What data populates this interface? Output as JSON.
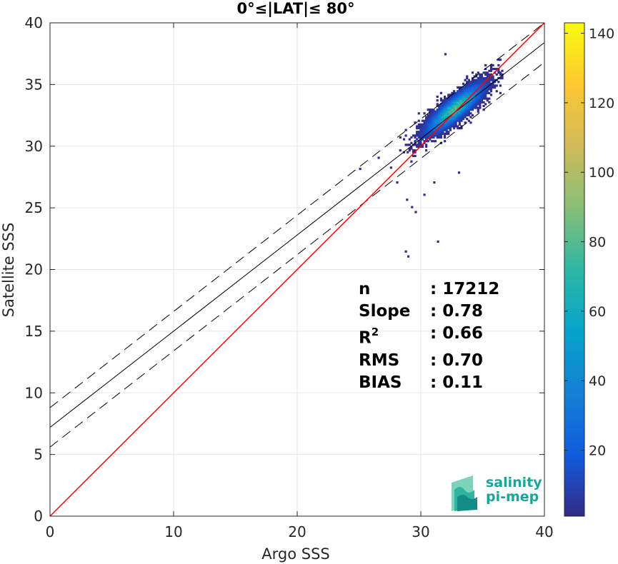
{
  "chart_data": {
    "type": "heatmap",
    "title": "0°≤|LAT|≤ 80°",
    "xlabel": "Argo SSS",
    "ylabel": "Satellite SSS",
    "xlim": [
      0,
      40
    ],
    "ylim": [
      0,
      40
    ],
    "xticks": [
      "0",
      "10",
      "20",
      "30",
      "40"
    ],
    "yticks": [
      "0",
      "5",
      "10",
      "15",
      "20",
      "25",
      "30",
      "35",
      "40"
    ],
    "grid": true,
    "colorbar": {
      "min": 1,
      "max": 143,
      "ticks": [
        "20",
        "40",
        "60",
        "80",
        "100",
        "120",
        "140"
      ],
      "colormap": "parula"
    },
    "density": {
      "center_x": 32.7,
      "center_y": 33.0,
      "spread_major": 2.0,
      "spread_minor": 0.55,
      "orientation_deg": 40,
      "peak_count": 143
    },
    "outliers": [
      {
        "x": 31.9,
        "y": 37.4
      },
      {
        "x": 28.7,
        "y": 21.4
      },
      {
        "x": 28.9,
        "y": 21.0
      },
      {
        "x": 31.3,
        "y": 22.2
      },
      {
        "x": 25.0,
        "y": 28.1
      },
      {
        "x": 29.2,
        "y": 25.0
      },
      {
        "x": 28.8,
        "y": 25.6
      },
      {
        "x": 29.5,
        "y": 24.6
      },
      {
        "x": 26.5,
        "y": 29.0
      },
      {
        "x": 33.0,
        "y": 27.8
      },
      {
        "x": 28.0,
        "y": 27.0
      },
      {
        "x": 30.2,
        "y": 26.0
      },
      {
        "x": 27.5,
        "y": 28.2
      },
      {
        "x": 31.0,
        "y": 27.0
      }
    ],
    "lines": {
      "one_to_one": {
        "slope": 1,
        "intercept": 0,
        "color": "#ff0000"
      },
      "fit": {
        "slope": 0.78,
        "intercept": 7.2,
        "color": "#000000",
        "style": "solid"
      },
      "upper": {
        "slope": 0.78,
        "intercept": 8.8,
        "color": "#000000",
        "style": "dashed"
      },
      "lower": {
        "slope": 0.78,
        "intercept": 5.6,
        "color": "#000000",
        "style": "dashed"
      }
    }
  },
  "stats": {
    "n": {
      "label": "n",
      "value": ": 17212"
    },
    "slope": {
      "label": "Slope",
      "value": ": 0.78"
    },
    "r2": {
      "label": "R",
      "sup": "2",
      "value": ": 0.66"
    },
    "rms": {
      "label": "RMS",
      "value": ": 0.70"
    },
    "bias": {
      "label": "BIAS",
      "value": ": 0.11"
    }
  },
  "logo": {
    "line1": "salinity",
    "line2": "pi-mep",
    "color": "#1aa59a"
  }
}
